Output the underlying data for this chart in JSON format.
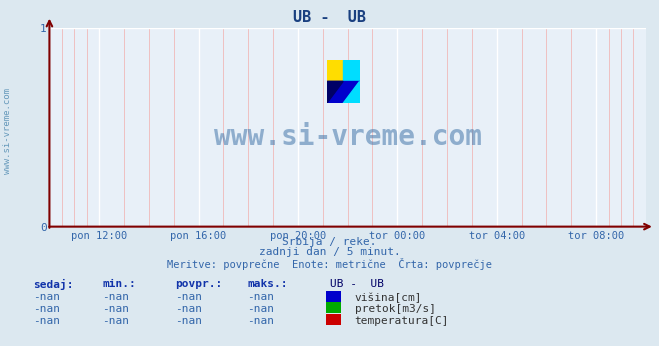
{
  "title": "UB -  UB",
  "title_color": "#1a4080",
  "bg_color": "#dce8f0",
  "plot_bg_color": "#e8f0f8",
  "grid_color_white": "#ffffff",
  "grid_color_pink": "#f0b8b8",
  "axis_color": "#800000",
  "text_color": "#3366aa",
  "watermark": "www.si-vreme.com",
  "watermark_color": "#4477aa",
  "ylabel_text": "www.si-vreme.com",
  "subtitle1": "Srbija / reke.",
  "subtitle2": "zadnji dan / 5 minut.",
  "subtitle3": "Meritve: povprečne  Enote: metrične  Črta: povprečje",
  "x_tick_labels": [
    "pon 12:00",
    "pon 16:00",
    "pon 20:00",
    "tor 00:00",
    "tor 04:00",
    "tor 08:00"
  ],
  "x_tick_positions": [
    0.0833,
    0.25,
    0.4167,
    0.5833,
    0.75,
    0.9167
  ],
  "ylim": [
    0,
    1
  ],
  "yticks": [
    0,
    1
  ],
  "legend_title": "UB -  UB",
  "legend_items": [
    {
      "label": "višina[cm]",
      "color": "#0000cc"
    },
    {
      "label": "pretok[m3/s]",
      "color": "#00aa00"
    },
    {
      "label": "temperatura[C]",
      "color": "#cc0000"
    }
  ],
  "table_headers": [
    "sedaj:",
    "min.:",
    "povpr.:",
    "maks.:"
  ],
  "table_rows": [
    [
      "-nan",
      "-nan",
      "-nan",
      "-nan"
    ],
    [
      "-nan",
      "-nan",
      "-nan",
      "-nan"
    ],
    [
      "-nan",
      "-nan",
      "-nan",
      "-nan"
    ]
  ],
  "line_color": "#0000cc",
  "icon_colors": {
    "yellow": "#ffdd00",
    "cyan": "#00ddff",
    "blue": "#0000cc"
  }
}
